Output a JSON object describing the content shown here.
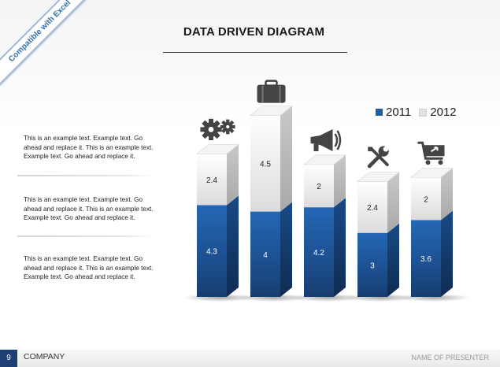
{
  "badge": {
    "text": "Compatible with Excel"
  },
  "header": {
    "title": "DATA DRIVEN DIAGRAM"
  },
  "paragraphs": [
    "This is an example  text. Example text. Go ahead and replace it. This is an example text. Example text. Go ahead and replace it.",
    "This is an example  text. Example text. Go ahead and replace it. This is an example text. Example text. Go ahead and replace it.",
    "This is an example  text. Example text. Go ahead and replace it. This is an example text. Example text. Go ahead and replace it."
  ],
  "footer": {
    "page_number": "9",
    "company": "COMPANY",
    "presenter": "NAME OF PRESENTER"
  },
  "colors": {
    "series_2011": "#1f5fa8",
    "series_2012": "#e8e8e8",
    "accent": "#1e3f73"
  },
  "chart_data": {
    "type": "bar",
    "stacked": true,
    "categories": [
      "",
      "",
      "",
      "",
      ""
    ],
    "category_icons": [
      "gears-icon",
      "briefcase-icon",
      "megaphone-icon",
      "tools-icon",
      "shopping-cart-icon"
    ],
    "series": [
      {
        "name": "2011",
        "values": [
          4.3,
          4,
          4.2,
          3,
          3.6
        ]
      },
      {
        "name": "2012",
        "values": [
          2.4,
          4.5,
          2,
          2.4,
          2
        ]
      }
    ],
    "legend": "top-right",
    "grid": false,
    "title": "",
    "xlabel": "",
    "ylabel": ""
  }
}
